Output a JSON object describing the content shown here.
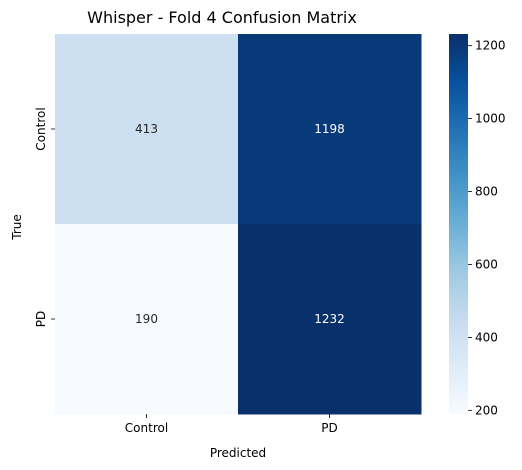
{
  "chart_data": {
    "type": "heatmap",
    "title": "Whisper - Fold 4 Confusion Matrix",
    "xlabel": "Predicted",
    "ylabel": "True",
    "x_categories": [
      "Control",
      "PD"
    ],
    "y_categories": [
      "Control",
      "PD"
    ],
    "values": [
      [
        413,
        1198
      ],
      [
        190,
        1232
      ]
    ],
    "colormap": "Blues",
    "colorbar": {
      "min": 190,
      "max": 1232,
      "ticks": [
        200,
        400,
        600,
        800,
        1000,
        1200
      ]
    },
    "cell_label_colors": {
      "light": "#262626",
      "dark": "#ffffff"
    }
  }
}
